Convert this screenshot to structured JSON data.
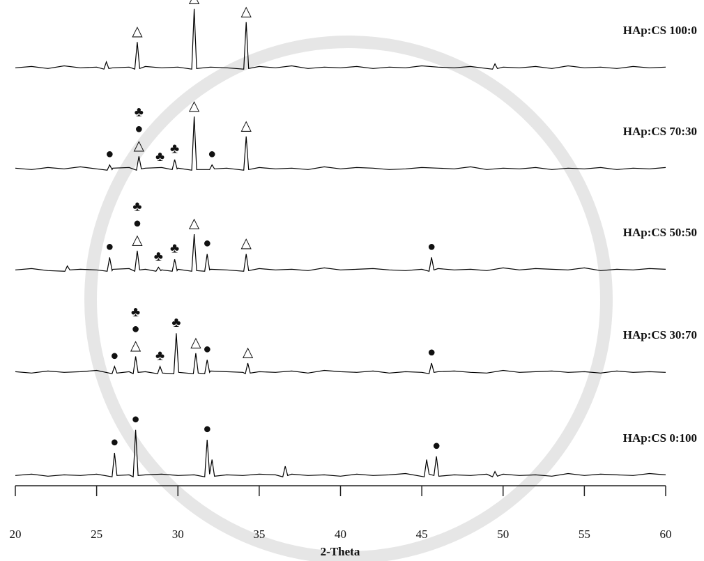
{
  "chart_data": {
    "type": "line",
    "x_label": "2-Theta",
    "xlim": [
      20,
      60
    ],
    "xticks": [
      20,
      25,
      30,
      35,
      40,
      45,
      50,
      55,
      60
    ],
    "series": [
      {
        "name": "HAp:CS 100:0",
        "color": "#000000",
        "x": [
          20,
          21,
          22,
          23,
          24,
          25,
          25.45,
          25.6,
          25.75,
          26,
          27,
          27.35,
          27.5,
          27.65,
          28,
          29,
          30,
          30.85,
          31,
          31.15,
          32,
          33,
          34.05,
          34.2,
          34.35,
          35,
          36,
          37,
          38,
          39,
          40,
          41,
          42,
          43,
          44,
          45,
          46,
          47,
          48,
          49,
          49.35,
          49.5,
          49.65,
          50,
          51,
          52,
          53,
          54,
          55,
          56,
          57,
          58,
          59,
          60
        ],
        "values": [
          6,
          8,
          5,
          9,
          6,
          7,
          4,
          15,
          5,
          6,
          7,
          4,
          45,
          5,
          8,
          6,
          7,
          4,
          95,
          5,
          7,
          6,
          4,
          75,
          5,
          8,
          6,
          9,
          5,
          7,
          6,
          8,
          5,
          7,
          6,
          9,
          7,
          6,
          8,
          5,
          4,
          12,
          5,
          7,
          6,
          8,
          5,
          9,
          6,
          7,
          5,
          8,
          6,
          7
        ],
        "markers": [
          {
            "x": 27.5,
            "label": "△"
          },
          {
            "x": 31.0,
            "label": "△"
          },
          {
            "x": 34.2,
            "label": "△"
          }
        ]
      },
      {
        "name": "HAp:CS 70:30",
        "color": "#000000",
        "x": [
          20,
          21,
          22,
          23,
          24,
          25,
          25.65,
          25.8,
          25.95,
          26,
          27,
          27.45,
          27.6,
          27.75,
          28,
          29,
          29.65,
          29.8,
          29.95,
          30,
          30.85,
          31,
          31.15,
          31.95,
          32.1,
          32.25,
          33,
          34.05,
          34.2,
          34.35,
          35,
          36,
          37,
          38,
          39,
          40,
          41,
          42,
          43,
          44,
          45,
          46,
          47,
          48,
          49,
          50,
          51,
          52,
          53,
          54,
          55,
          56,
          57,
          58,
          59,
          60
        ],
        "values": [
          7,
          5,
          8,
          6,
          9,
          6,
          4,
          12,
          5,
          7,
          8,
          4,
          25,
          6,
          7,
          8,
          5,
          20,
          6,
          7,
          4,
          85,
          5,
          5,
          12,
          6,
          7,
          4,
          55,
          5,
          8,
          6,
          7,
          5,
          9,
          6,
          8,
          7,
          5,
          6,
          8,
          7,
          6,
          9,
          5,
          7,
          6,
          8,
          5,
          7,
          6,
          8,
          5,
          7,
          6,
          8
        ],
        "markers": [
          {
            "x": 25.8,
            "label": "●"
          },
          {
            "x": 27.6,
            "label": "△"
          },
          {
            "x": 27.6,
            "label": "●"
          },
          {
            "x": 27.6,
            "label": "♣"
          },
          {
            "x": 28.9,
            "label": "♣"
          },
          {
            "x": 29.8,
            "label": "♣"
          },
          {
            "x": 31.0,
            "label": "△"
          },
          {
            "x": 32.1,
            "label": "●"
          },
          {
            "x": 34.2,
            "label": "△"
          }
        ]
      },
      {
        "name": "HAp:CS 50:50",
        "color": "#000000",
        "x": [
          20,
          21,
          22,
          23.05,
          23.2,
          23.35,
          24,
          25,
          25.65,
          25.8,
          25.95,
          26,
          27,
          27.35,
          27.5,
          27.65,
          28,
          28.65,
          28.8,
          28.95,
          29,
          29.65,
          29.8,
          29.95,
          30,
          30.85,
          31,
          31.15,
          31.65,
          31.8,
          31.95,
          32,
          33,
          34.05,
          34.2,
          34.35,
          35,
          36,
          37,
          38,
          39,
          40,
          41,
          42,
          43,
          44,
          45,
          45.45,
          45.6,
          45.75,
          46,
          47,
          48,
          49,
          50,
          51,
          52,
          53,
          54,
          55,
          56,
          57,
          58,
          59,
          60
        ],
        "values": [
          6,
          8,
          5,
          4,
          12,
          6,
          7,
          6,
          4,
          25,
          5,
          7,
          8,
          4,
          35,
          6,
          7,
          4,
          10,
          5,
          6,
          4,
          22,
          5,
          7,
          4,
          60,
          5,
          4,
          30,
          6,
          7,
          6,
          4,
          30,
          5,
          8,
          6,
          7,
          5,
          9,
          6,
          7,
          8,
          6,
          5,
          7,
          4,
          25,
          6,
          8,
          6,
          7,
          5,
          9,
          6,
          8,
          7,
          6,
          9,
          5,
          7,
          6,
          8,
          7
        ],
        "markers": [
          {
            "x": 25.8,
            "label": "●"
          },
          {
            "x": 27.5,
            "label": "△"
          },
          {
            "x": 27.5,
            "label": "●"
          },
          {
            "x": 27.5,
            "label": "♣"
          },
          {
            "x": 28.8,
            "label": "♣"
          },
          {
            "x": 29.8,
            "label": "♣"
          },
          {
            "x": 31.0,
            "label": "△"
          },
          {
            "x": 31.8,
            "label": "●"
          },
          {
            "x": 34.2,
            "label": "△"
          },
          {
            "x": 45.6,
            "label": "●"
          }
        ]
      },
      {
        "name": "HAp:CS 30:70",
        "color": "#000000",
        "x": [
          20,
          21,
          22,
          23,
          24,
          25,
          25.95,
          26.1,
          26.25,
          27,
          27.25,
          27.4,
          27.55,
          28,
          28.75,
          28.9,
          29.05,
          29.75,
          29.9,
          30.05,
          30.95,
          31.1,
          31.25,
          31.65,
          31.8,
          31.95,
          32,
          33,
          34,
          34.15,
          34.3,
          34.45,
          35,
          36,
          37,
          38,
          39,
          40,
          41,
          42,
          43,
          44,
          45,
          45.45,
          45.6,
          45.75,
          46,
          47,
          48,
          49,
          50,
          51,
          52,
          53,
          54,
          55,
          56,
          57,
          58,
          59,
          60
        ],
        "values": [
          7,
          5,
          8,
          6,
          7,
          9,
          4,
          15,
          5,
          7,
          4,
          30,
          6,
          7,
          4,
          15,
          5,
          4,
          65,
          6,
          4,
          35,
          5,
          4,
          25,
          6,
          8,
          7,
          6,
          4,
          20,
          5,
          7,
          6,
          8,
          5,
          9,
          7,
          6,
          8,
          5,
          7,
          6,
          4,
          20,
          6,
          7,
          8,
          6,
          5,
          9,
          6,
          7,
          8,
          6,
          7,
          5,
          8,
          6,
          7,
          6
        ],
        "markers": [
          {
            "x": 26.1,
            "label": "●"
          },
          {
            "x": 27.4,
            "label": "△"
          },
          {
            "x": 27.4,
            "label": "●"
          },
          {
            "x": 27.4,
            "label": "♣"
          },
          {
            "x": 28.9,
            "label": "♣"
          },
          {
            "x": 29.9,
            "label": "♣"
          },
          {
            "x": 31.1,
            "label": "△"
          },
          {
            "x": 31.8,
            "label": "●"
          },
          {
            "x": 34.3,
            "label": "△"
          },
          {
            "x": 45.6,
            "label": "●"
          }
        ]
      },
      {
        "name": "HAp:CS 0:100",
        "color": "#000000",
        "x": [
          20,
          21,
          22,
          23,
          24,
          25,
          25.95,
          26.1,
          26.25,
          27,
          27.25,
          27.4,
          27.55,
          28,
          29,
          30,
          31,
          31.65,
          31.8,
          31.95,
          32.1,
          32.25,
          33,
          34,
          35,
          36,
          36.45,
          36.6,
          36.75,
          37,
          38,
          39,
          40,
          41,
          42,
          43,
          44,
          45.15,
          45.3,
          45.45,
          45.75,
          45.9,
          46.05,
          47,
          48,
          49,
          49.35,
          49.5,
          49.65,
          50,
          51,
          52,
          53,
          54,
          55,
          56,
          57,
          58,
          59,
          60
        ],
        "values": [
          6,
          8,
          5,
          7,
          6,
          8,
          4,
          40,
          6,
          7,
          4,
          75,
          6,
          7,
          8,
          6,
          7,
          4,
          60,
          8,
          30,
          5,
          7,
          6,
          8,
          7,
          4,
          20,
          6,
          8,
          6,
          7,
          5,
          8,
          6,
          7,
          9,
          4,
          30,
          8,
          6,
          35,
          5,
          7,
          6,
          8,
          4,
          12,
          5,
          8,
          6,
          7,
          5,
          9,
          6,
          8,
          7,
          6,
          9,
          7
        ],
        "markers": [
          {
            "x": 26.1,
            "label": "●"
          },
          {
            "x": 27.4,
            "label": "●"
          },
          {
            "x": 31.8,
            "label": "●"
          },
          {
            "x": 45.9,
            "label": "●"
          }
        ]
      }
    ]
  }
}
